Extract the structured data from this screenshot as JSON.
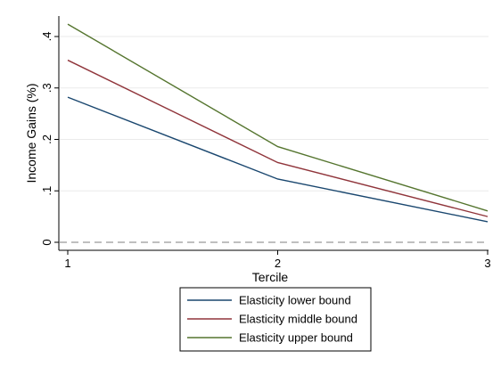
{
  "chart_data": {
    "type": "line",
    "xlabel": "Tercile",
    "ylabel": "Income Gains (%)",
    "x": [
      1,
      2,
      3
    ],
    "xticks": [
      "1",
      "2",
      "3"
    ],
    "yticks": [
      "0",
      ".1",
      ".2",
      ".3",
      ".4"
    ],
    "xlim": [
      1,
      3
    ],
    "ylim": [
      -0.02,
      0.44
    ],
    "grid": true,
    "reference_line": {
      "y": 0,
      "style": "dashed",
      "color": "#999999"
    },
    "legend_position": "bottom",
    "series": [
      {
        "name": "Elasticity lower bound",
        "color": "#1a476f",
        "values": [
          0.282,
          0.123,
          0.04
        ]
      },
      {
        "name": "Elasticity middle bound",
        "color": "#90353b",
        "values": [
          0.354,
          0.155,
          0.05
        ]
      },
      {
        "name": "Elasticity upper bound",
        "color": "#55752f",
        "values": [
          0.424,
          0.186,
          0.061
        ]
      }
    ]
  }
}
